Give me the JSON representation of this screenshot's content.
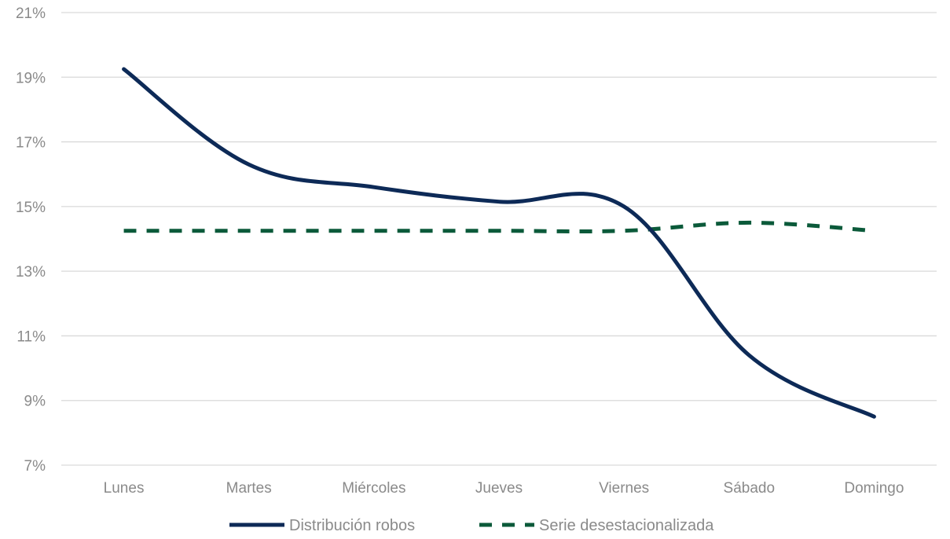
{
  "chart_data": {
    "type": "line",
    "categories": [
      "Lunes",
      "Martes",
      "Miércoles",
      "Jueves",
      "Viernes",
      "Sábado",
      "Domingo"
    ],
    "series": [
      {
        "name": "Distribución robos",
        "values": [
          19.25,
          16.3,
          15.6,
          15.15,
          15.0,
          10.4,
          8.5
        ],
        "color": "#0d2a57",
        "style": "solid"
      },
      {
        "name": "Serie desestacionalizada",
        "values": [
          14.25,
          14.25,
          14.25,
          14.25,
          14.25,
          14.5,
          14.25
        ],
        "color": "#0b5a3a",
        "style": "dashed"
      }
    ],
    "y_ticks": [
      "7%",
      "9%",
      "11%",
      "13%",
      "15%",
      "17%",
      "19%",
      "21%"
    ],
    "ylim": [
      7,
      21
    ],
    "grid": true,
    "legend_position": "bottom",
    "title": "",
    "xlabel": "",
    "ylabel": ""
  }
}
